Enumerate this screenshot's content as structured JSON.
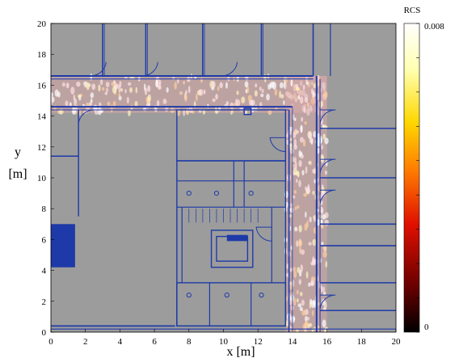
{
  "chart_data": {
    "type": "heatmap",
    "title": "",
    "xlabel": "x [m]",
    "ylabel_top": "y",
    "ylabel_bottom": "[m]",
    "xlim": [
      0,
      20
    ],
    "ylim": [
      0,
      20
    ],
    "xticks": [
      "0",
      "2",
      "4",
      "6",
      "8",
      "10",
      "12",
      "14",
      "16",
      "18",
      "20"
    ],
    "yticks": [
      "0",
      "2",
      "4",
      "6",
      "8",
      "10",
      "12",
      "14",
      "16",
      "18",
      "20"
    ],
    "colorbar": {
      "title": "RCS",
      "min_label": "0",
      "max_label": "0.008",
      "min": 0,
      "max": 0.008,
      "colormap": "hot",
      "colors": [
        "#000000",
        "#7a0000",
        "#e01000",
        "#ff7a00",
        "#ffd700",
        "#ffffc0",
        "#ffffff"
      ]
    },
    "background": {
      "description": "building floor plan",
      "floor_color": "#9c9c9c",
      "wall_color": "#1e3aa8",
      "highlight_color": "#ffe6e6"
    },
    "high_rcs_regions": [
      {
        "name": "north corridor",
        "x": [
          0,
          16
        ],
        "y": [
          14.2,
          16.6
        ]
      },
      {
        "name": "east corridor",
        "x": [
          13.6,
          16
        ],
        "y": [
          0,
          16.6
        ]
      }
    ]
  }
}
